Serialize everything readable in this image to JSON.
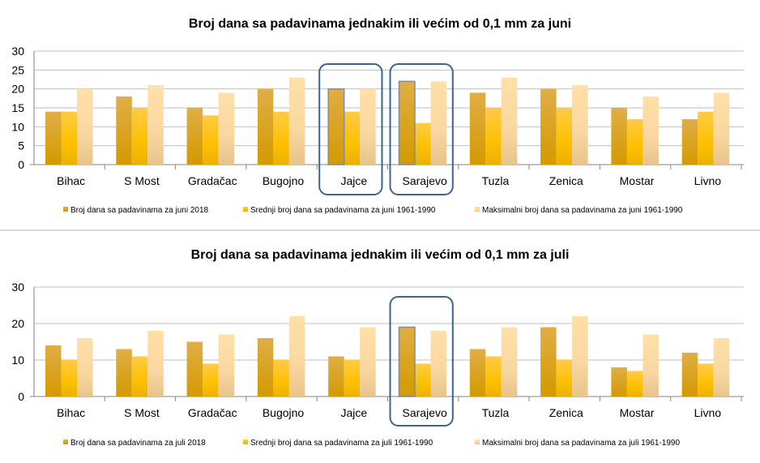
{
  "colors": {
    "s1": "#D9A11E",
    "s2": "#FFC21A",
    "s3": "#FCD9A0",
    "highlight": "#3A6590",
    "grid": "#BFBFBF"
  },
  "chart_data": [
    {
      "type": "bar",
      "title": "Broj dana sa padavinama jednakim ili većim od 0,1 mm za juni",
      "categories": [
        "Bihac",
        "S Most",
        "Gradačac",
        "Bugojno",
        "Jajce",
        "Sarajevo",
        "Tuzla",
        "Zenica",
        "Mostar",
        "Livno"
      ],
      "series": [
        {
          "name": "Broj dana sa padavinama za juni 2018",
          "values": [
            14,
            18,
            15,
            20,
            20,
            22,
            19,
            20,
            15,
            12
          ]
        },
        {
          "name": "Srednji broj dana sa padavinama za juni 1961-1990",
          "values": [
            14,
            15,
            13,
            14,
            14,
            11,
            15,
            15,
            12,
            14
          ]
        },
        {
          "name": "Maksimalni broj dana sa padavinama za juni 1961-1990",
          "values": [
            20,
            21,
            19,
            23,
            20,
            22,
            23,
            21,
            18,
            19
          ]
        }
      ],
      "yticks": [
        "0",
        "5",
        "10",
        "15",
        "20",
        "25",
        "30"
      ],
      "ylim": [
        0,
        30
      ],
      "grid": true,
      "legend": "bottom",
      "highlighted": [
        "Jajce",
        "Sarajevo"
      ]
    },
    {
      "type": "bar",
      "title": "Broj dana sa padavinama jednakim ili većim od 0,1 mm za juli",
      "categories": [
        "Bihac",
        "S Most",
        "Gradačac",
        "Bugojno",
        "Jajce",
        "Sarajevo",
        "Tuzla",
        "Zenica",
        "Mostar",
        "Livno"
      ],
      "series": [
        {
          "name": "Broj dana sa padavinama za juli 2018",
          "values": [
            14,
            13,
            15,
            16,
            11,
            19,
            13,
            19,
            8,
            12
          ]
        },
        {
          "name": "Srednji broj dana sa padavinama za juli 1961-1990",
          "values": [
            10,
            11,
            9,
            10,
            10,
            9,
            11,
            10,
            7,
            9
          ]
        },
        {
          "name": "Maksimalni broj dana sa padavinama za juli 1961-1990",
          "values": [
            16,
            18,
            17,
            22,
            19,
            18,
            19,
            22,
            17,
            16
          ]
        }
      ],
      "yticks": [
        "0",
        "10",
        "20",
        "30"
      ],
      "ylim": [
        0,
        30
      ],
      "grid": true,
      "legend": "bottom",
      "highlighted": [
        "Sarajevo"
      ]
    }
  ]
}
